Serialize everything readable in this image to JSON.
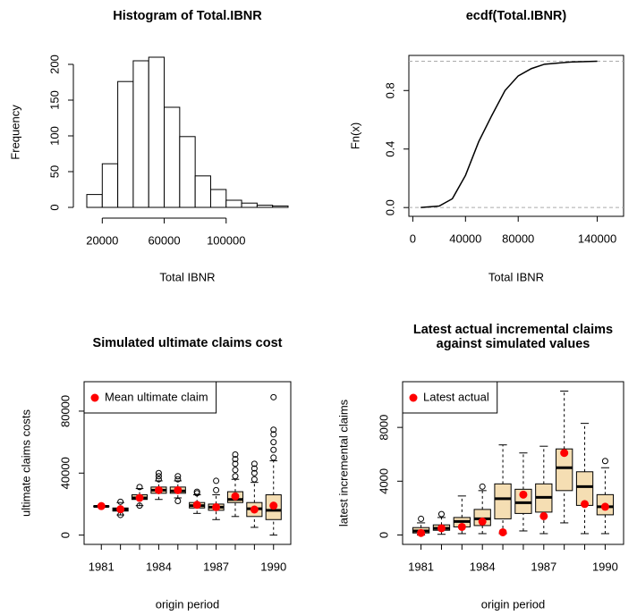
{
  "chart_data": [
    {
      "type": "histogram",
      "title": "Histogram of Total.IBNR",
      "xlabel": "Total IBNR",
      "ylabel": "Frequency",
      "bins": [
        10000,
        20000,
        30000,
        40000,
        50000,
        60000,
        70000,
        80000,
        90000,
        100000,
        110000,
        120000,
        130000,
        140000
      ],
      "values": [
        18,
        61,
        176,
        205,
        210,
        140,
        99,
        44,
        25,
        10,
        6,
        3,
        2
      ],
      "xlim": [
        10000,
        140000
      ],
      "xticks": [
        20000,
        60000,
        100000
      ],
      "ylim": [
        0,
        210
      ],
      "yticks": [
        0,
        50,
        100,
        150,
        200
      ],
      "color": "#ffffff"
    },
    {
      "type": "ecdf",
      "title": "ecdf(Total.IBNR)",
      "xlabel": "Total IBNR",
      "ylabel": "Fn(x)",
      "x": [
        6000,
        20000,
        30000,
        40000,
        50000,
        60000,
        70000,
        80000,
        90000,
        100000,
        120000,
        140000
      ],
      "y": [
        0,
        0.01,
        0.06,
        0.22,
        0.45,
        0.63,
        0.8,
        0.9,
        0.95,
        0.98,
        0.995,
        1
      ],
      "xlim": [
        -3000,
        160000
      ],
      "xticks": [
        0,
        40000,
        80000,
        140000
      ],
      "ylim": [
        -0.06,
        1.04
      ],
      "yticks": [
        {
          "value": 0,
          "label": "0.0"
        },
        0.4,
        0.8
      ],
      "hlines": [
        0,
        1
      ],
      "color": "#000000"
    },
    {
      "type": "boxplot",
      "title": "Simulated ultimate claims cost",
      "xlabel": "origin period",
      "ylabel": "ultimate claims costs",
      "categories": [
        "1981",
        null,
        null,
        "1984",
        null,
        null,
        "1987",
        null,
        null,
        "1990"
      ],
      "boxes": {
        "fill": "#f5deb3",
        "whisker_low": [
          18000,
          13000,
          19000,
          23000,
          24000,
          14000,
          10000,
          12000,
          5000,
          0
        ],
        "q1": [
          18300,
          15500,
          23000,
          27000,
          27000,
          17500,
          16000,
          21000,
          12000,
          10000
        ],
        "median": [
          18500,
          16500,
          24000,
          29000,
          28500,
          19000,
          18000,
          23000,
          17000,
          16000
        ],
        "q3": [
          18800,
          17500,
          26000,
          31000,
          31000,
          21000,
          20000,
          28000,
          21000,
          26000
        ],
        "whisker_high": [
          19200,
          21000,
          30000,
          35000,
          35000,
          26000,
          26000,
          36000,
          34000,
          48000
        ],
        "outliers": [
          [],
          [
            21500,
            13000
          ],
          [
            31000,
            19000
          ],
          [
            36000,
            38000,
            40000
          ],
          [
            36000,
            38000,
            22000
          ],
          [
            27000,
            28000
          ],
          [
            29000,
            35000
          ],
          [
            38000,
            42000,
            46000,
            49000,
            52000
          ],
          [
            36000,
            40000,
            43000,
            46000
          ],
          [
            50000,
            55000,
            60000,
            65000,
            68000,
            89000
          ]
        ]
      },
      "series": [
        {
          "name": "Mean ultimate claim",
          "color": "#ff0000",
          "values": [
            18700,
            16700,
            24000,
            29000,
            29000,
            19500,
            18000,
            25000,
            16500,
            19000
          ]
        }
      ],
      "ylim": [
        -6000,
        99000
      ],
      "yticks": [
        0,
        40000,
        80000
      ],
      "legend": "top-left"
    },
    {
      "type": "boxplot",
      "title": [
        "Latest actual incremental claims",
        "against simulated values"
      ],
      "xlabel": "origin period",
      "ylabel": "latest incremental claims",
      "categories": [
        "1981",
        null,
        null,
        "1984",
        null,
        null,
        "1987",
        null,
        null,
        "1990"
      ],
      "boxes": {
        "fill": "#f5deb3",
        "whisker_low": [
          0,
          50,
          100,
          100,
          100,
          300,
          100,
          900,
          100,
          100
        ],
        "q1": [
          150,
          350,
          600,
          700,
          1200,
          1600,
          1700,
          3300,
          2200,
          1500
        ],
        "median": [
          300,
          500,
          1000,
          1200,
          2700,
          2400,
          2800,
          5000,
          3600,
          2100
        ],
        "q3": [
          550,
          750,
          1300,
          1900,
          3800,
          3400,
          3800,
          6400,
          4700,
          3000
        ],
        "whisker_high": [
          900,
          1300,
          2900,
          3300,
          6700,
          6100,
          6600,
          10700,
          8300,
          5000
        ],
        "outliers": [
          [
            1200
          ],
          [
            1550
          ],
          [],
          [
            3600
          ],
          [],
          [],
          [],
          [],
          [],
          [
            5500
          ]
        ]
      },
      "series": [
        {
          "name": "Latest actual",
          "color": "#ff0000",
          "values": [
            150,
            500,
            600,
            1000,
            200,
            3000,
            1400,
            6100,
            2300,
            2100
          ]
        }
      ],
      "ylim": [
        -700,
        11400
      ],
      "yticks": [
        0,
        4000,
        8000
      ],
      "legend": "top-left"
    }
  ]
}
